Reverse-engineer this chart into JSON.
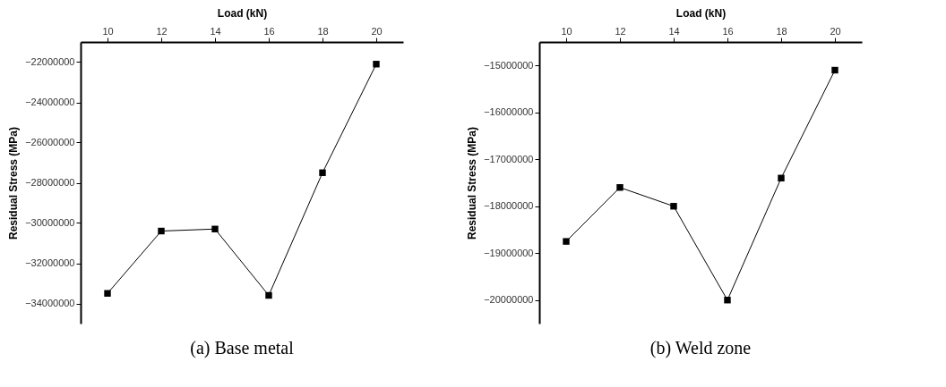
{
  "chart_data": [
    {
      "type": "line",
      "xlabel": "Load (kN)",
      "ylabel": "Residual Stress (MPa)",
      "annotations": [
        "(a) Base metal"
      ],
      "marker": "square",
      "line_style": "solid",
      "grid": false,
      "x": [
        10,
        12,
        14,
        16,
        18,
        20
      ],
      "series": [
        {
          "color": "#000000",
          "values": [
            -33500000,
            -30400000,
            -30300000,
            -33600000,
            -27500000,
            -22100000
          ]
        }
      ],
      "xlim": [
        9,
        21
      ],
      "xticks": [
        10,
        12,
        14,
        16,
        18,
        20
      ],
      "ylim": [
        -35000000,
        -21000000
      ],
      "yticks": [
        -34000000,
        -32000000,
        -30000000,
        -28000000,
        -26000000,
        -24000000,
        -22000000
      ]
    },
    {
      "type": "line",
      "xlabel": "Load (kN)",
      "ylabel": "Residual Stress (MPa)",
      "annotations": [
        "(b) Weld zone"
      ],
      "marker": "square",
      "line_style": "solid",
      "grid": false,
      "x": [
        10,
        12,
        14,
        16,
        18,
        20
      ],
      "series": [
        {
          "color": "#000000",
          "values": [
            -18750000,
            -17600000,
            -18000000,
            -20000000,
            -17400000,
            -15100000
          ]
        }
      ],
      "xlim": [
        9,
        21
      ],
      "xticks": [
        10,
        12,
        14,
        16,
        18,
        20
      ],
      "ylim": [
        -20500000,
        -14500000
      ],
      "yticks": [
        -20000000,
        -19000000,
        -18000000,
        -17000000,
        -16000000,
        -15000000
      ]
    }
  ]
}
